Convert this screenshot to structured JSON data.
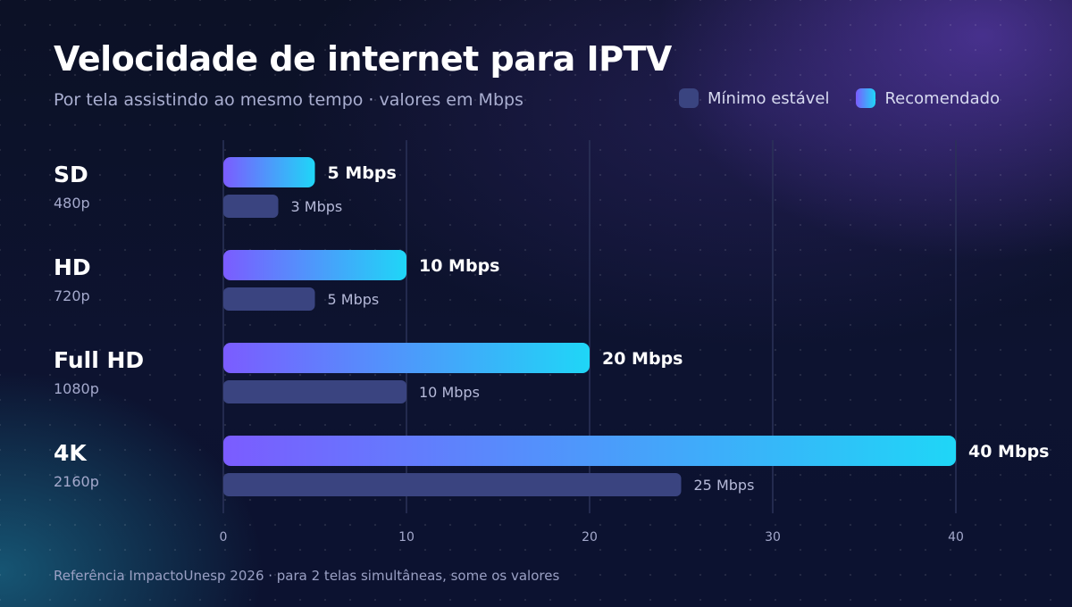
{
  "header": {
    "title": "Velocidade de internet para IPTV",
    "subtitle": "Por tela assistindo ao mesmo tempo · valores em Mbps"
  },
  "legend": {
    "min_label": "Mínimo estável",
    "rec_label": "Recomendado"
  },
  "footer": {
    "note": "Referência ImpactoUnesp 2026 · para 2 telas simultâneas, some os valores"
  },
  "colors": {
    "recommended_start": "#7b5cff",
    "recommended_end": "#1fd6f7",
    "minimum": "#3a4480",
    "gridline": "#2b3258"
  },
  "chart_data": {
    "type": "bar",
    "orientation": "horizontal",
    "title": "Velocidade de internet para IPTV",
    "subtitle": "Por tela assistindo ao mesmo tempo · valores em Mbps",
    "categories": [
      "SD",
      "HD",
      "Full HD",
      "4K"
    ],
    "category_sublabels": [
      "480p",
      "720p",
      "1080p",
      "2160p"
    ],
    "series": [
      {
        "name": "Recomendado",
        "values": [
          5,
          10,
          20,
          40
        ],
        "labels": [
          "5 Mbps",
          "10 Mbps",
          "20 Mbps",
          "40 Mbps"
        ]
      },
      {
        "name": "Mínimo estável",
        "values": [
          3,
          5,
          10,
          25
        ],
        "labels": [
          "3 Mbps",
          "5 Mbps",
          "10 Mbps",
          "25 Mbps"
        ]
      }
    ],
    "xlim": [
      0,
      40
    ],
    "xticks": [
      0,
      10,
      20,
      30,
      40
    ],
    "grid": true,
    "legend_position": "top-right"
  }
}
